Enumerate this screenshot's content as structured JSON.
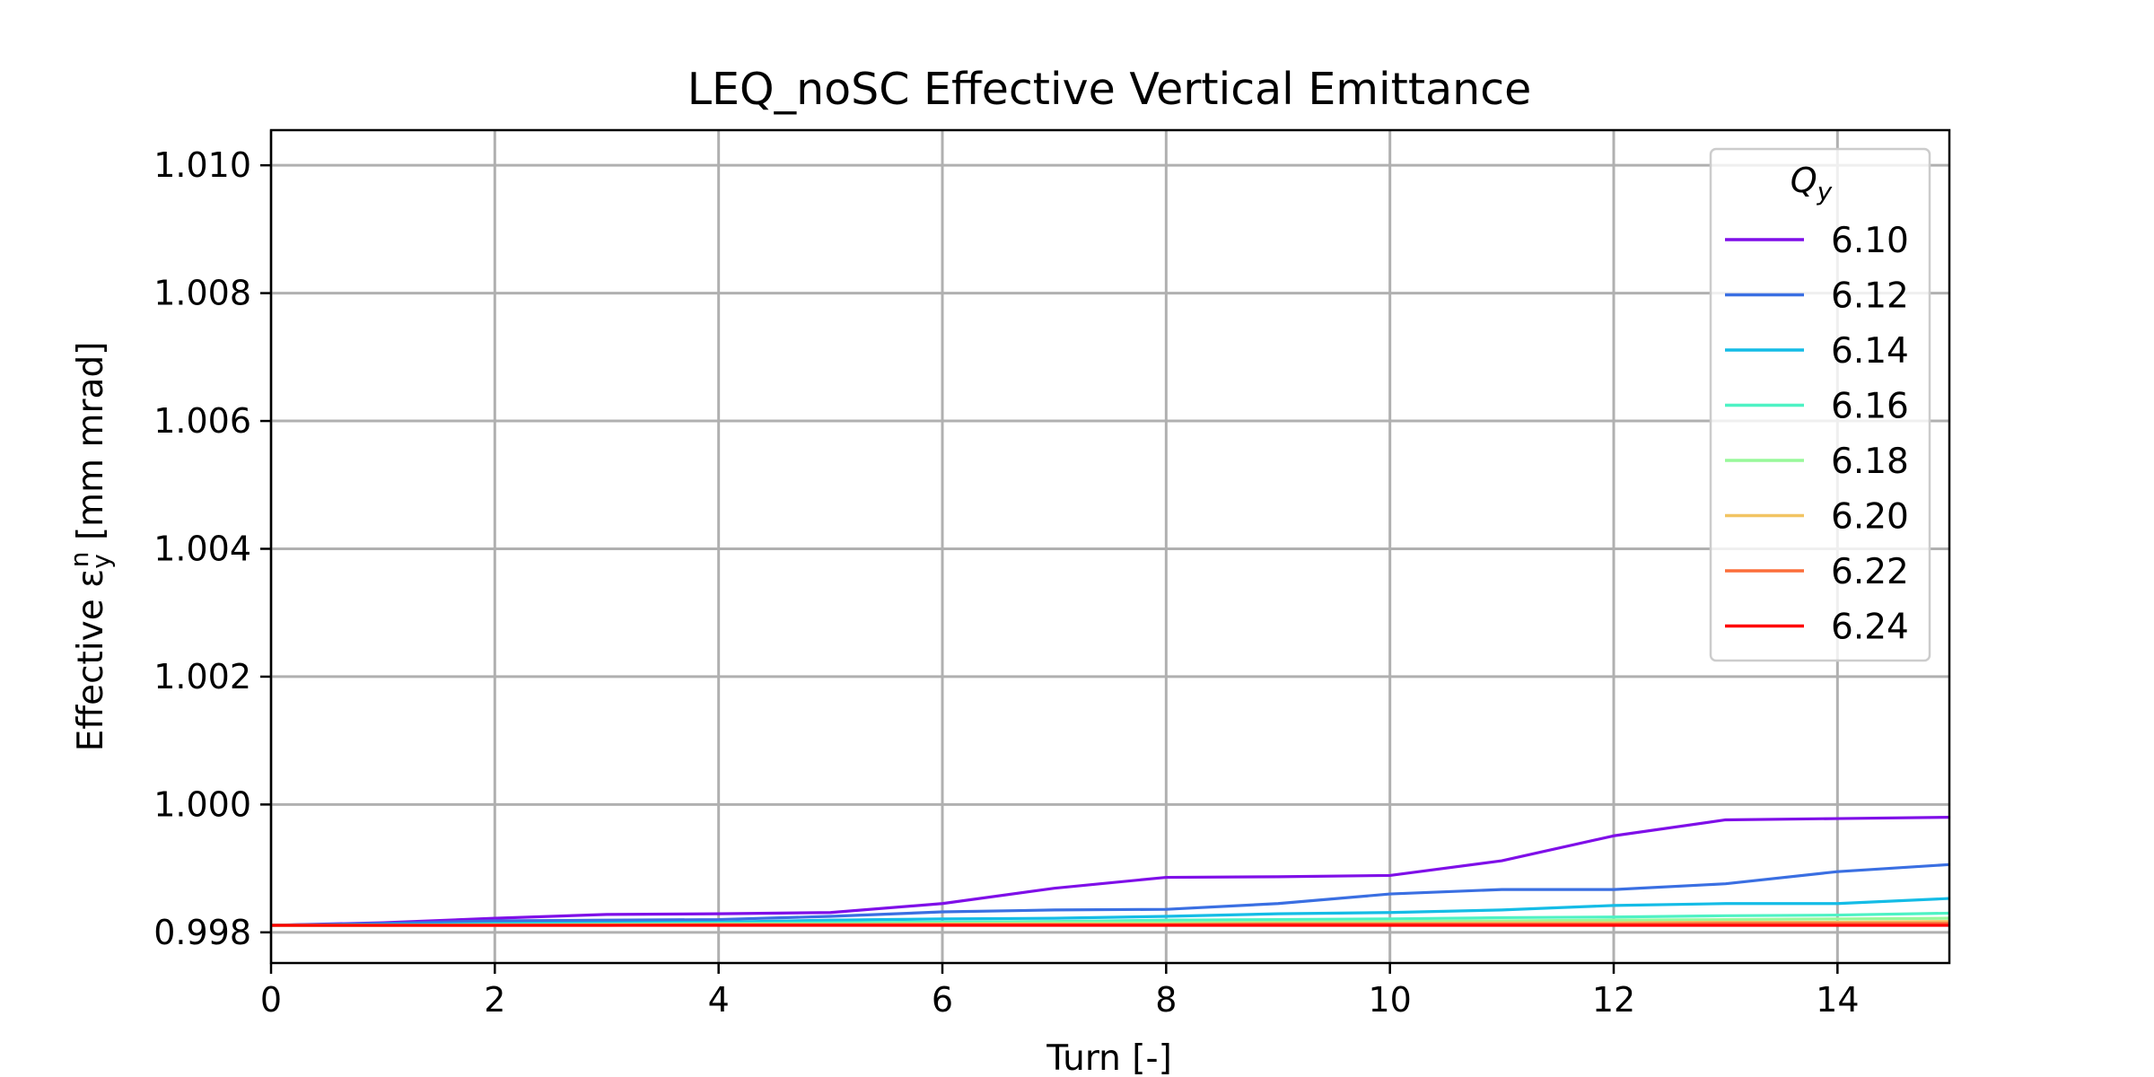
{
  "chart_data": {
    "type": "line",
    "title": "LEQ_noSC Effective Vertical Emittance",
    "xlabel": "Turn [-]",
    "ylabel": "Effective ε",
    "ylabel_sub": "y",
    "ylabel_sup": "n",
    "ylabel_unit": " [mm mrad]",
    "xlim": [
      0,
      15
    ],
    "ylim": [
      0.99752,
      1.01055
    ],
    "x_ticks": [
      0,
      2,
      4,
      6,
      8,
      10,
      12,
      14
    ],
    "x_tick_labels": [
      "0",
      "2",
      "4",
      "6",
      "8",
      "10",
      "12",
      "14"
    ],
    "y_ticks": [
      0.998,
      1.0,
      1.002,
      1.004,
      1.006,
      1.008,
      1.01
    ],
    "y_tick_labels": [
      "0.998",
      "1.000",
      "1.002",
      "1.004",
      "1.006",
      "1.008",
      "1.010"
    ],
    "grid": true,
    "legend": {
      "placement": "top-right",
      "title": "Q",
      "title_sub": "y"
    },
    "x": [
      0,
      1,
      2,
      3,
      4,
      5,
      6,
      7,
      8,
      9,
      10,
      11,
      12,
      13,
      14,
      15
    ],
    "series": [
      {
        "name": "6.10",
        "color": "#7f0fe8",
        "values": [
          0.99811,
          0.99815,
          0.99822,
          0.99828,
          0.99829,
          0.99831,
          0.99845,
          0.99869,
          0.99886,
          0.99887,
          0.99889,
          0.99912,
          0.99951,
          0.99976,
          0.99978,
          0.9998
        ]
      },
      {
        "name": "6.12",
        "color": "#3a6fe2",
        "values": [
          0.99811,
          0.99814,
          0.99818,
          0.99819,
          0.9982,
          0.99825,
          0.99832,
          0.99835,
          0.99836,
          0.99845,
          0.9986,
          0.99867,
          0.99867,
          0.99876,
          0.99895,
          0.99906
        ]
      },
      {
        "name": "6.14",
        "color": "#14bce6",
        "values": [
          0.99811,
          0.99812,
          0.99814,
          0.99815,
          0.99816,
          0.99819,
          0.99821,
          0.99822,
          0.99825,
          0.99829,
          0.99831,
          0.99835,
          0.99842,
          0.99845,
          0.99845,
          0.99853
        ]
      },
      {
        "name": "6.16",
        "color": "#4ef2c4",
        "values": [
          0.99811,
          0.99811,
          0.99812,
          0.99813,
          0.99814,
          0.99815,
          0.99816,
          0.99817,
          0.99819,
          0.9982,
          0.99821,
          0.99823,
          0.99824,
          0.99826,
          0.99827,
          0.9983
        ]
      },
      {
        "name": "6.18",
        "color": "#98f89a",
        "values": [
          0.99811,
          0.99811,
          0.99812,
          0.99812,
          0.99813,
          0.99813,
          0.99814,
          0.99815,
          0.99815,
          0.99816,
          0.99817,
          0.99818,
          0.99819,
          0.9982,
          0.99821,
          0.99822
        ]
      },
      {
        "name": "6.20",
        "color": "#f2c462",
        "values": [
          0.99811,
          0.99811,
          0.99811,
          0.99812,
          0.99812,
          0.99812,
          0.99813,
          0.99813,
          0.99813,
          0.99814,
          0.99814,
          0.99815,
          0.99815,
          0.99816,
          0.99816,
          0.99817
        ]
      },
      {
        "name": "6.22",
        "color": "#fc6e3a",
        "values": [
          0.99811,
          0.99811,
          0.99811,
          0.99811,
          0.99812,
          0.99812,
          0.99812,
          0.99812,
          0.99812,
          0.99813,
          0.99813,
          0.99813,
          0.99813,
          0.99814,
          0.99814,
          0.99814
        ]
      },
      {
        "name": "6.24",
        "color": "#ff0000",
        "values": [
          0.99811,
          0.99811,
          0.99811,
          0.99811,
          0.99811,
          0.99811,
          0.99811,
          0.99811,
          0.99811,
          0.99811,
          0.99811,
          0.99811,
          0.99811,
          0.99811,
          0.99811,
          0.99811
        ]
      }
    ]
  }
}
